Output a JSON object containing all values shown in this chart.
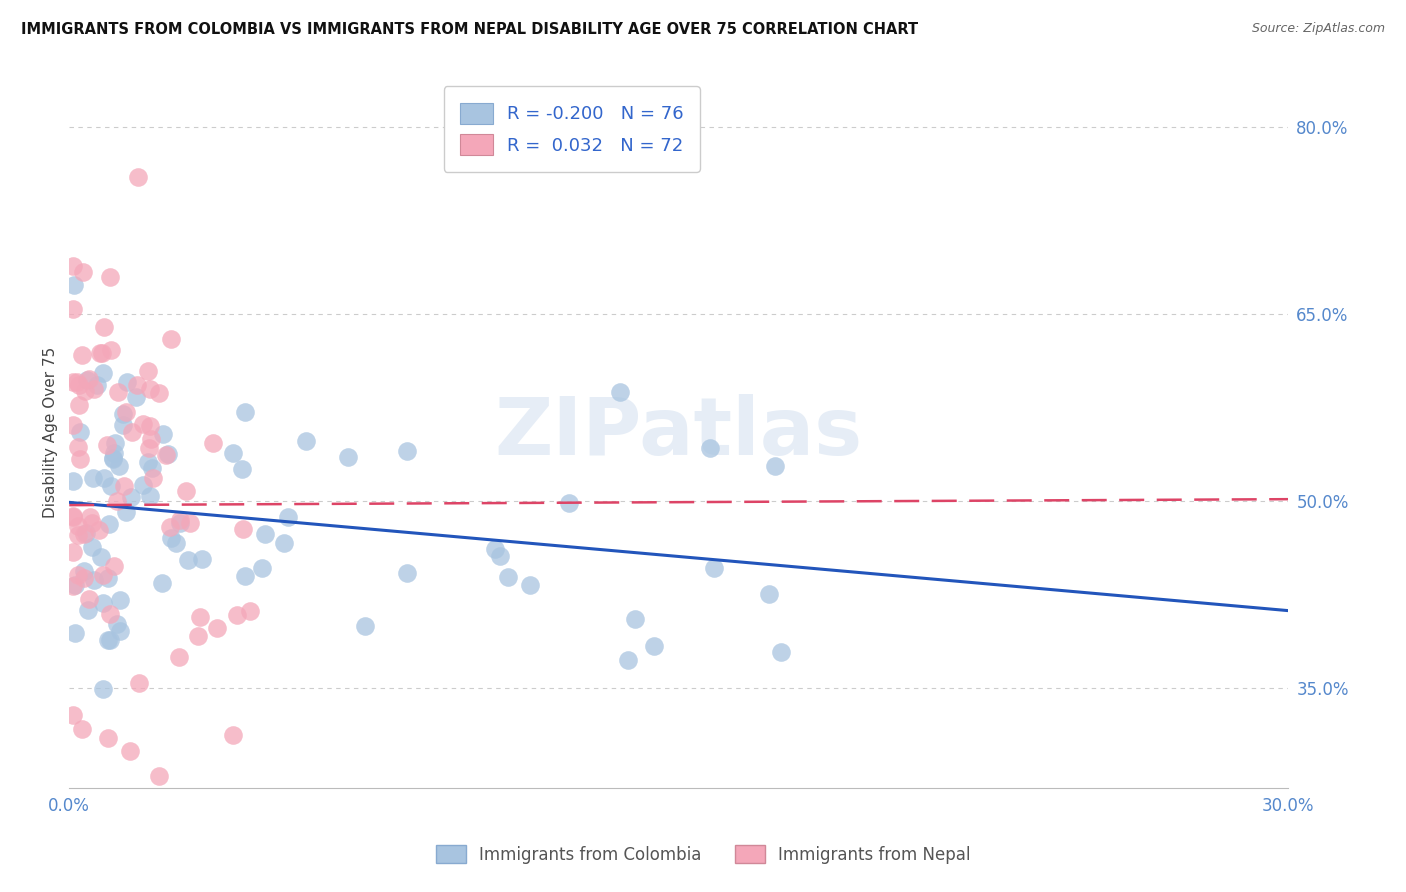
{
  "title": "IMMIGRANTS FROM COLOMBIA VS IMMIGRANTS FROM NEPAL DISABILITY AGE OVER 75 CORRELATION CHART",
  "source": "Source: ZipAtlas.com",
  "ylabel": "Disability Age Over 75",
  "ytick_labels": [
    "80.0%",
    "65.0%",
    "50.0%",
    "35.0%"
  ],
  "ytick_values": [
    0.8,
    0.65,
    0.5,
    0.35
  ],
  "xlim": [
    0.0,
    0.3
  ],
  "ylim": [
    0.27,
    0.84
  ],
  "colombia_R": -0.2,
  "colombia_N": 76,
  "nepal_R": 0.032,
  "nepal_N": 72,
  "colombia_color": "#a8c4e0",
  "nepal_color": "#f4a7b9",
  "colombia_line_color": "#2255bb",
  "nepal_line_color": "#dd4466",
  "background_color": "#ffffff",
  "grid_color": "#cccccc",
  "watermark": "ZIPatlas",
  "title_color": "#111111",
  "source_color": "#666666",
  "tick_color": "#5588cc"
}
